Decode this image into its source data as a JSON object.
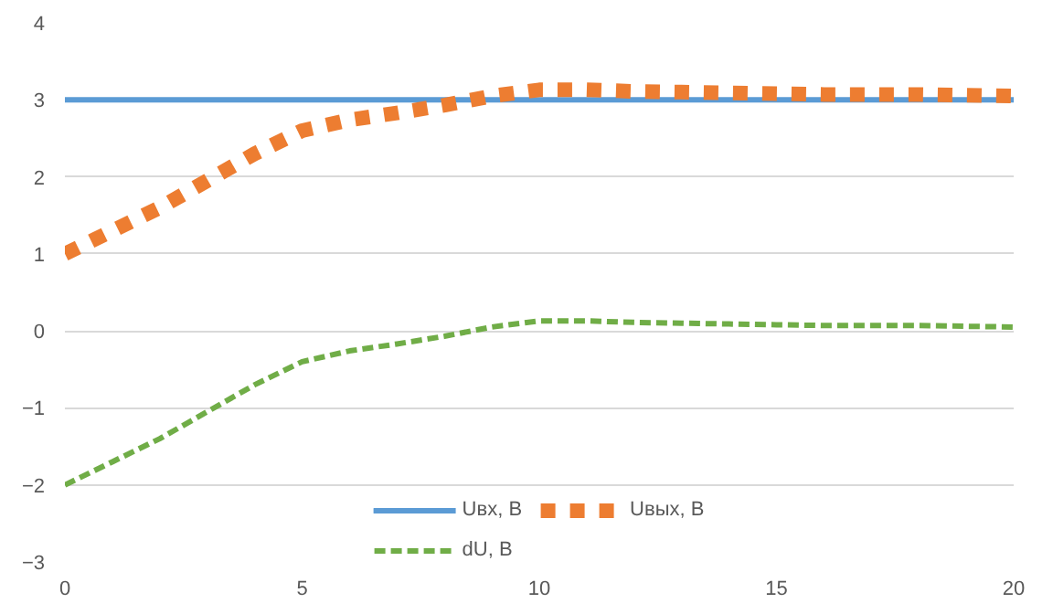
{
  "chart_data": {
    "type": "line",
    "x": [
      0,
      1,
      2,
      3,
      4,
      5,
      6,
      7,
      8,
      9,
      10,
      11,
      12,
      13,
      14,
      15,
      16,
      17,
      18,
      19,
      20
    ],
    "series": [
      {
        "name": "Uвх, В",
        "color": "#5b9bd5",
        "line_style": "solid",
        "values": [
          3,
          3,
          3,
          3,
          3,
          3,
          3,
          3,
          3,
          3,
          3,
          3,
          3,
          3,
          3,
          3,
          3,
          3,
          3,
          3,
          3
        ]
      },
      {
        "name": "Uвых, В",
        "color": "#ed7d31",
        "line_style": "dotted",
        "values": [
          1.0,
          1.3,
          1.6,
          1.95,
          2.3,
          2.6,
          2.74,
          2.83,
          2.93,
          3.05,
          3.13,
          3.13,
          3.11,
          3.1,
          3.09,
          3.08,
          3.07,
          3.07,
          3.07,
          3.06,
          3.05
        ]
      },
      {
        "name": "dU, В",
        "color": "#70ad47",
        "line_style": "dashed",
        "values": [
          -2.0,
          -1.7,
          -1.4,
          -1.05,
          -0.7,
          -0.4,
          -0.26,
          -0.17,
          -0.07,
          0.05,
          0.13,
          0.13,
          0.11,
          0.1,
          0.09,
          0.08,
          0.07,
          0.07,
          0.07,
          0.06,
          0.05
        ]
      }
    ],
    "xlim": [
      0,
      20
    ],
    "xticks": [
      0,
      5,
      10,
      15,
      20
    ],
    "ylim": [
      -3,
      4
    ],
    "yticks": [
      -3,
      -2,
      -1,
      0,
      1,
      2,
      3,
      4
    ],
    "grid": "y",
    "legend": "bottom",
    "marker": "none"
  }
}
